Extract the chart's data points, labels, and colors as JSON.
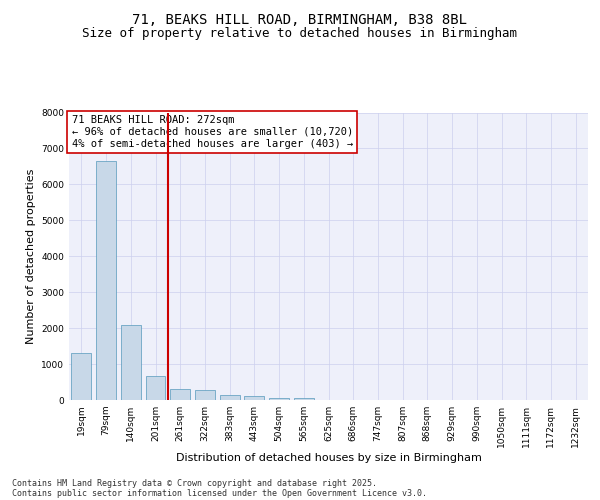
{
  "title_line1": "71, BEAKS HILL ROAD, BIRMINGHAM, B38 8BL",
  "title_line2": "Size of property relative to detached houses in Birmingham",
  "xlabel": "Distribution of detached houses by size in Birmingham",
  "ylabel": "Number of detached properties",
  "categories": [
    "19sqm",
    "79sqm",
    "140sqm",
    "201sqm",
    "261sqm",
    "322sqm",
    "383sqm",
    "443sqm",
    "504sqm",
    "565sqm",
    "625sqm",
    "686sqm",
    "747sqm",
    "807sqm",
    "868sqm",
    "929sqm",
    "990sqm",
    "1050sqm",
    "1111sqm",
    "1172sqm",
    "1232sqm"
  ],
  "values": [
    1300,
    6650,
    2100,
    680,
    310,
    290,
    140,
    100,
    60,
    60,
    0,
    0,
    0,
    0,
    0,
    0,
    0,
    0,
    0,
    0,
    0
  ],
  "bar_color": "#c8d8e8",
  "bar_edge_color": "#5599bb",
  "vline_color": "#cc0000",
  "annotation_box_text": "71 BEAKS HILL ROAD: 272sqm\n← 96% of detached houses are smaller (10,720)\n4% of semi-detached houses are larger (403) →",
  "annotation_box_color": "#cc0000",
  "annotation_box_fill": "#ffffff",
  "ylim": [
    0,
    8000
  ],
  "yticks": [
    0,
    1000,
    2000,
    3000,
    4000,
    5000,
    6000,
    7000,
    8000
  ],
  "grid_color": "#ccd0ee",
  "background_color": "#eef0fa",
  "footer_line1": "Contains HM Land Registry data © Crown copyright and database right 2025.",
  "footer_line2": "Contains public sector information licensed under the Open Government Licence v3.0.",
  "title_fontsize": 10,
  "subtitle_fontsize": 9,
  "axis_label_fontsize": 8,
  "tick_fontsize": 6.5,
  "annotation_fontsize": 7.5,
  "footer_fontsize": 6
}
